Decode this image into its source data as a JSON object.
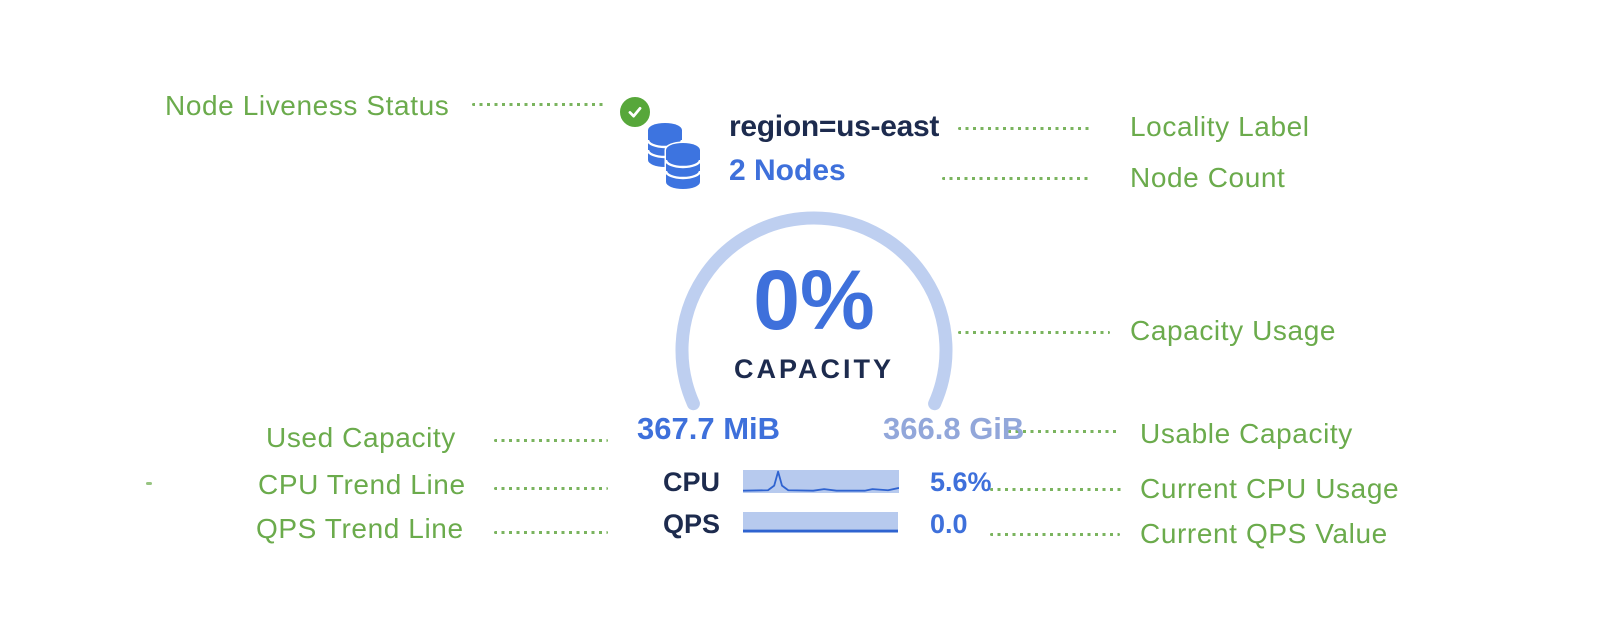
{
  "colors": {
    "green": "#6BAB4C",
    "checkGreen": "#57A73A",
    "navy": "#1D2B4E",
    "blue": "#3E70DB",
    "mutedBlue": "#92A7DA",
    "arcBlue": "#BECFF0",
    "sparkBg": "#B7CAEE",
    "sparkLine": "#2F63D0",
    "dbBlue": "#3D74E0"
  },
  "annotations": {
    "node_liveness": "Node Liveness Status",
    "locality": "Locality Label",
    "node_count": "Node Count",
    "capacity_usage": "Capacity Usage",
    "used_capacity": "Used Capacity",
    "usable_capacity": "Usable Capacity",
    "cpu_trend": "CPU Trend Line",
    "current_cpu": "Current CPU Usage",
    "qps_trend": "QPS Trend Line",
    "current_qps": "Current QPS Value"
  },
  "card": {
    "locality_label": "region=us-east",
    "node_count": "2 Nodes",
    "capacity_percent": "0%",
    "capacity_caption": "CAPACITY",
    "used_capacity": "367.7 MiB",
    "usable_capacity": "366.8 GiB",
    "cpu_label": "CPU",
    "cpu_value": "5.6%",
    "qps_label": "QPS",
    "qps_value": "0.0"
  },
  "icons": {
    "liveness": "check-circle-icon",
    "cluster": "database-stack-icon"
  },
  "sparks": {
    "cpu": {
      "width": 1.8,
      "points": [
        [
          0,
          0.1
        ],
        [
          0.16,
          0.12
        ],
        [
          0.2,
          0.32
        ],
        [
          0.225,
          0.93
        ],
        [
          0.25,
          0.32
        ],
        [
          0.29,
          0.12
        ],
        [
          0.45,
          0.1
        ],
        [
          0.52,
          0.17
        ],
        [
          0.6,
          0.1
        ],
        [
          0.78,
          0.1
        ],
        [
          0.83,
          0.17
        ],
        [
          0.93,
          0.12
        ],
        [
          1,
          0.22
        ]
      ]
    },
    "qps": {
      "width": 2.6,
      "points": [
        [
          0,
          0.1
        ],
        [
          1,
          0.1
        ]
      ]
    }
  }
}
